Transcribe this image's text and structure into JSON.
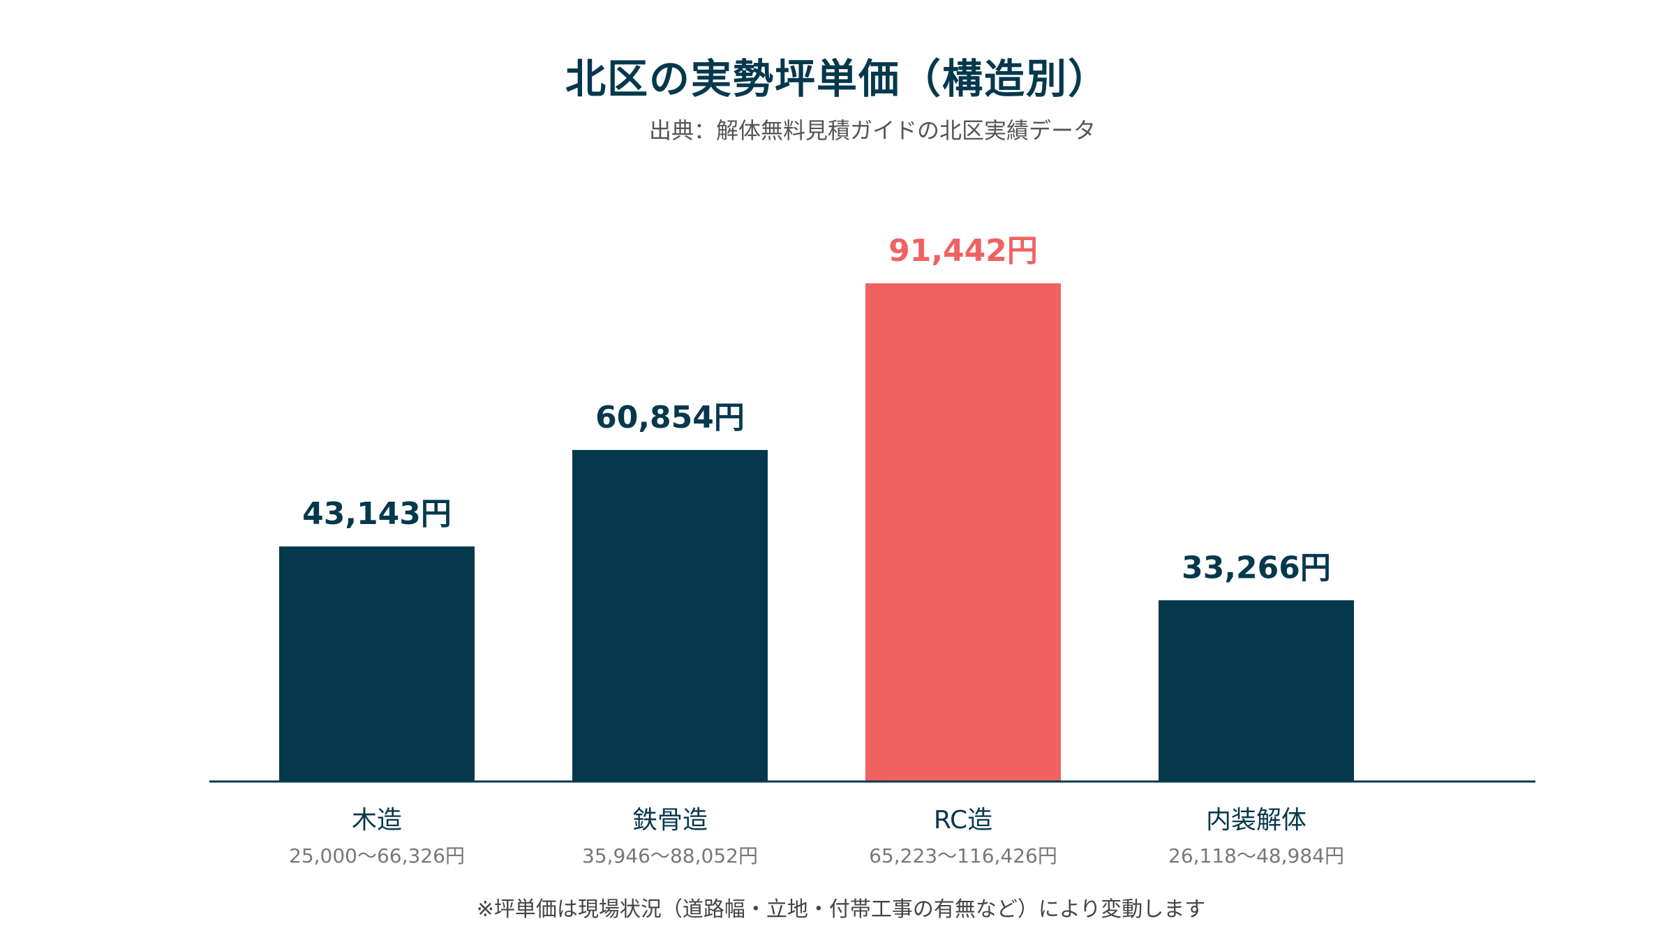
{
  "title": "北区の実勢坪単価（構造別）",
  "subtitle": "出典：解体無料見積ガイドの北区実績データ",
  "footnote": "※坪単価は現場状況（道路幅・立地・付帯工事の有無など）により変動します",
  "colors": {
    "primary": "#05384d",
    "highlight": "#f06262",
    "axis": "#05384d",
    "range_text": "#777777"
  },
  "chart_data": {
    "type": "bar",
    "categories": [
      "木造",
      "鉄骨造",
      "RC造",
      "内装解体"
    ],
    "values": [
      43143,
      60854,
      91442,
      33266
    ],
    "value_labels": [
      "43,143円",
      "60,854円",
      "91,442円",
      "33,266円"
    ],
    "ranges": [
      "25,000〜66,326円",
      "35,946〜88,052円",
      "65,223〜116,426円",
      "26,118〜48,984円"
    ],
    "highlight_index": 2,
    "ylim": [
      0,
      91442
    ],
    "grid": false,
    "legend": "none"
  }
}
